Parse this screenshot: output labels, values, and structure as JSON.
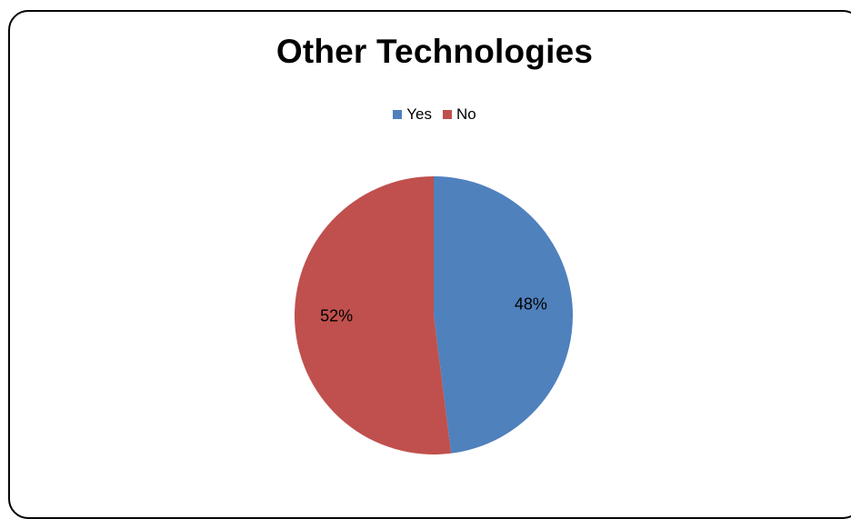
{
  "chart_data": {
    "type": "pie",
    "title": "Other Technologies",
    "legend_position": "top",
    "categories": [
      "Yes",
      "No"
    ],
    "values": [
      48,
      52
    ],
    "labels": [
      "48%",
      "52%"
    ],
    "colors": [
      "#4f81bd",
      "#c0504d"
    ],
    "start_angle": "12 o'clock",
    "direction": "clockwise"
  }
}
